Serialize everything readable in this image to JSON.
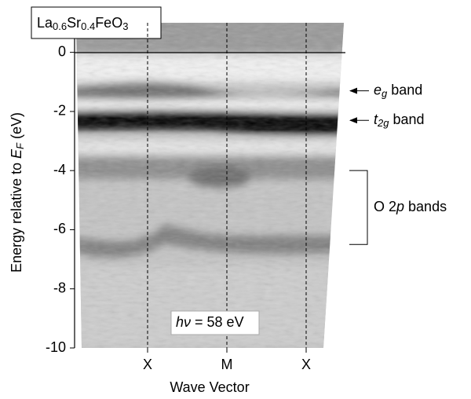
{
  "chart_data": {
    "type": "image",
    "title": [
      {
        "text": "La"
      },
      {
        "text": "0.6",
        "sub": true
      },
      {
        "text": "Sr"
      },
      {
        "text": "0.4",
        "sub": true
      },
      {
        "text": "FeO"
      },
      {
        "text": "3",
        "sub": true
      }
    ],
    "ylabel": [
      {
        "text": "Energy relative to "
      },
      {
        "text": "E",
        "italic": true
      },
      {
        "text": "F",
        "italic": true,
        "sub": true
      },
      {
        "text": " (eV)"
      }
    ],
    "xlabel": "Wave Vector",
    "categories": [
      "X",
      "M",
      "X"
    ],
    "ylim": [
      -10,
      1
    ],
    "yticks": [
      0,
      -2,
      -4,
      -6,
      -8,
      -10
    ],
    "annotations": [
      {
        "text": [
          {
            "text": "e",
            "italic": true
          },
          {
            "text": "g",
            "italic": true,
            "sub": true
          },
          {
            "text": " band"
          }
        ],
        "y": -1.3
      },
      {
        "text": [
          {
            "text": "t",
            "italic": true
          },
          {
            "text": "2g",
            "italic": true,
            "sub": true
          },
          {
            "text": " band"
          }
        ],
        "y": -2.3
      },
      {
        "text": [
          {
            "text": "O 2"
          },
          {
            "text": "p",
            "italic": true
          },
          {
            "text": " bands"
          }
        ],
        "y_range": [
          -4,
          -6.5
        ]
      },
      {
        "text": [
          {
            "text": "h",
            "italic": true
          },
          {
            "text": "ν",
            "italic": true
          },
          {
            "text": " = 58 eV"
          }
        ],
        "y": -9.15
      }
    ]
  }
}
